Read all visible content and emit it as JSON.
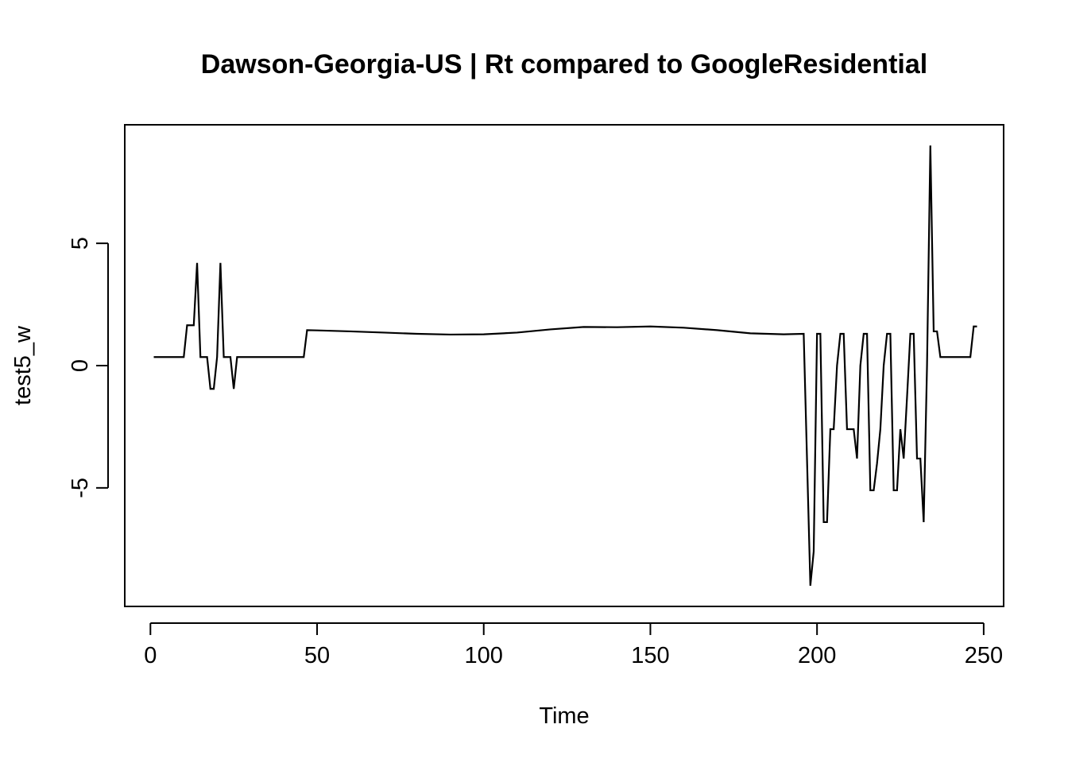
{
  "chart_data": {
    "type": "line",
    "title": "Dawson-Georgia-US | Rt compared to GoogleResidential",
    "xlabel": "Time",
    "ylabel": "test5_w",
    "xlim": [
      1,
      248
    ],
    "ylim": [
      -9.1,
      9.1
    ],
    "x_ticks": [
      0,
      50,
      100,
      150,
      200,
      250
    ],
    "y_ticks": [
      -5,
      0,
      5
    ],
    "grid": false,
    "legend": "none",
    "line_color": "#000000",
    "series": [
      {
        "points": [
          [
            1,
            0.35
          ],
          [
            2,
            0.35
          ],
          [
            3,
            0.35
          ],
          [
            4,
            0.35
          ],
          [
            5,
            0.35
          ],
          [
            6,
            0.35
          ],
          [
            7,
            0.35
          ],
          [
            8,
            0.35
          ],
          [
            9,
            0.35
          ],
          [
            10,
            0.35
          ],
          [
            11,
            1.65
          ],
          [
            12,
            1.65
          ],
          [
            13,
            1.65
          ],
          [
            14,
            4.2
          ],
          [
            15,
            0.35
          ],
          [
            16,
            0.35
          ],
          [
            17,
            0.35
          ],
          [
            18,
            -0.95
          ],
          [
            19,
            -0.95
          ],
          [
            20,
            0.35
          ],
          [
            21,
            4.2
          ],
          [
            22,
            0.35
          ],
          [
            23,
            0.35
          ],
          [
            24,
            0.35
          ],
          [
            25,
            -0.95
          ],
          [
            26,
            0.35
          ],
          [
            30,
            0.35
          ],
          [
            35,
            0.35
          ],
          [
            40,
            0.35
          ],
          [
            45,
            0.35
          ],
          [
            46,
            0.35
          ],
          [
            47,
            1.45
          ],
          [
            50,
            1.44
          ],
          [
            60,
            1.4
          ],
          [
            70,
            1.35
          ],
          [
            80,
            1.3
          ],
          [
            90,
            1.27
          ],
          [
            100,
            1.28
          ],
          [
            110,
            1.35
          ],
          [
            120,
            1.48
          ],
          [
            130,
            1.58
          ],
          [
            140,
            1.57
          ],
          [
            150,
            1.6
          ],
          [
            160,
            1.55
          ],
          [
            170,
            1.45
          ],
          [
            180,
            1.32
          ],
          [
            190,
            1.28
          ],
          [
            196,
            1.3
          ],
          [
            198,
            -9.0
          ],
          [
            199,
            -7.6
          ],
          [
            200,
            1.3
          ],
          [
            201,
            1.3
          ],
          [
            202,
            -6.4
          ],
          [
            203,
            -6.4
          ],
          [
            204,
            -2.6
          ],
          [
            205,
            -2.6
          ],
          [
            206,
            0.0
          ],
          [
            207,
            1.3
          ],
          [
            208,
            1.3
          ],
          [
            209,
            -2.6
          ],
          [
            210,
            -2.6
          ],
          [
            211,
            -2.6
          ],
          [
            212,
            -3.8
          ],
          [
            213,
            0.0
          ],
          [
            214,
            1.3
          ],
          [
            215,
            1.3
          ],
          [
            216,
            -5.1
          ],
          [
            217,
            -5.1
          ],
          [
            218,
            -4.0
          ],
          [
            219,
            -2.6
          ],
          [
            220,
            0.0
          ],
          [
            221,
            1.3
          ],
          [
            222,
            1.3
          ],
          [
            223,
            -5.1
          ],
          [
            224,
            -5.1
          ],
          [
            225,
            -2.6
          ],
          [
            226,
            -3.8
          ],
          [
            227,
            -1.3
          ],
          [
            228,
            1.3
          ],
          [
            229,
            1.3
          ],
          [
            230,
            -3.8
          ],
          [
            231,
            -3.8
          ],
          [
            232,
            -6.4
          ],
          [
            233,
            0.0
          ],
          [
            234,
            9.0
          ],
          [
            235,
            1.4
          ],
          [
            236,
            1.4
          ],
          [
            237,
            0.35
          ],
          [
            240,
            0.35
          ],
          [
            245,
            0.35
          ],
          [
            246,
            0.35
          ],
          [
            247,
            1.6
          ],
          [
            248,
            1.6
          ]
        ]
      }
    ]
  }
}
